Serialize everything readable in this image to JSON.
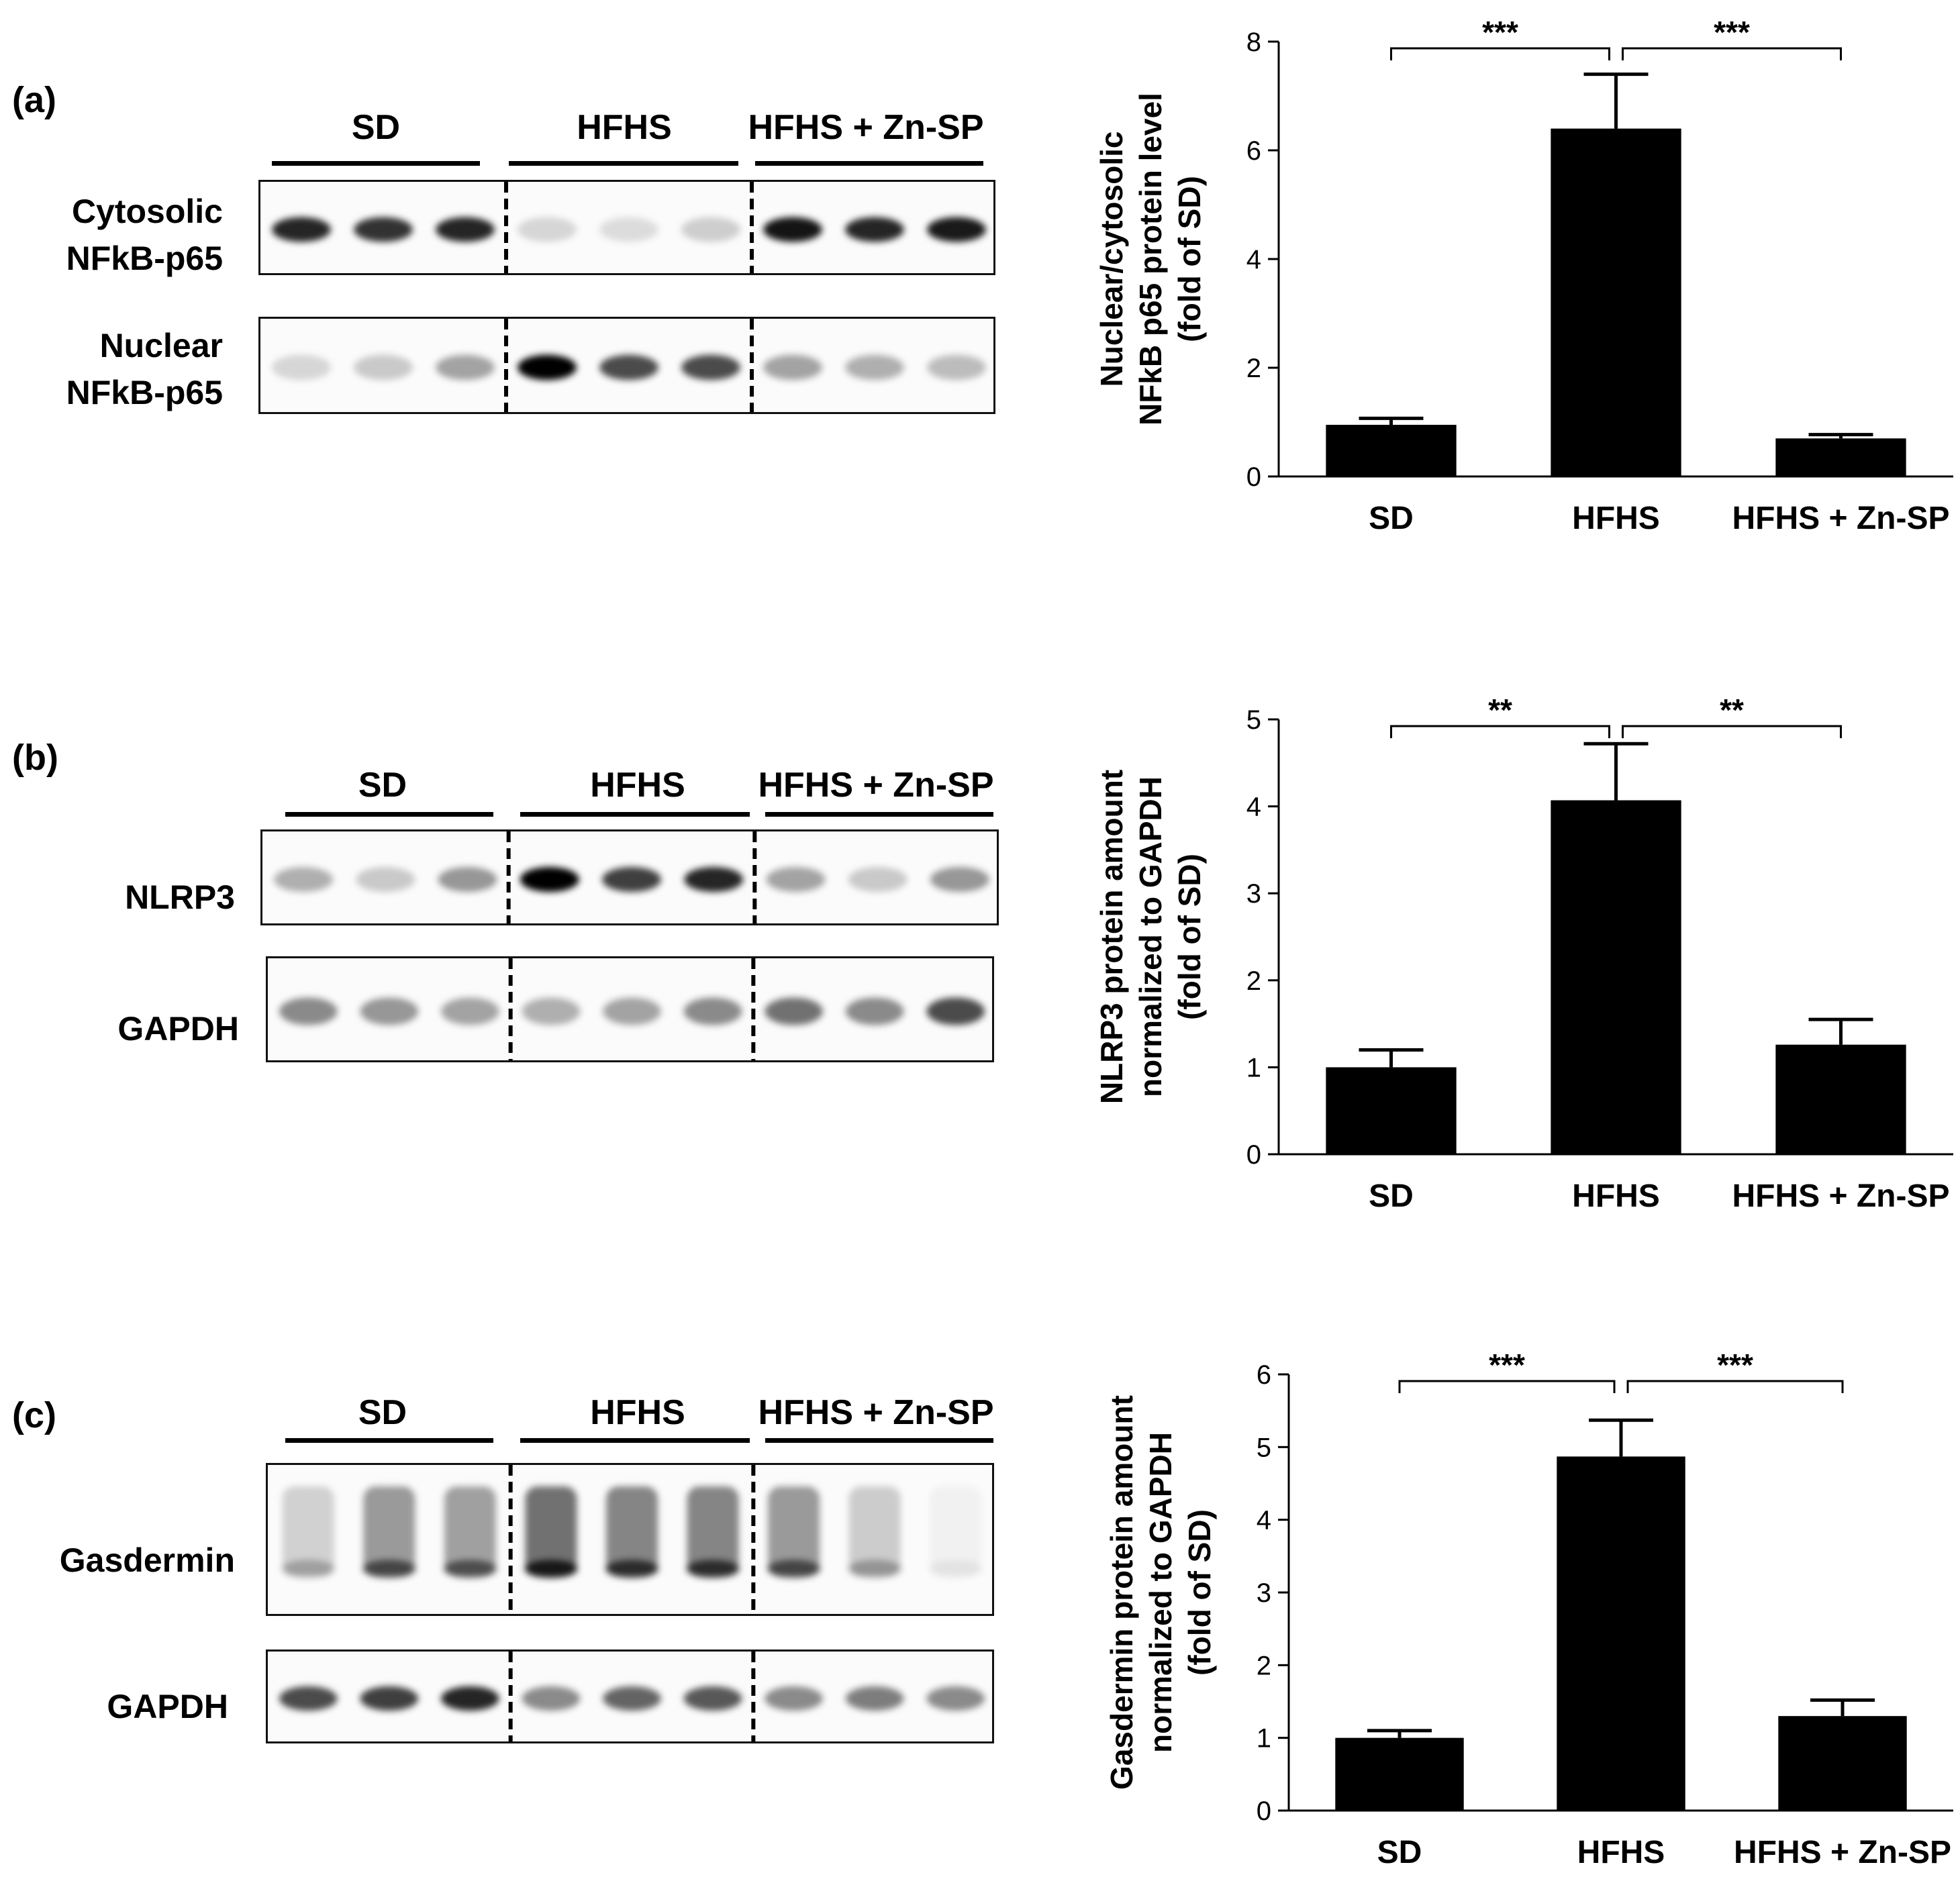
{
  "panels": [
    {
      "letter": "(a)",
      "groups": [
        "SD",
        "HFHS",
        "HFHS + Zn-SP"
      ],
      "blots": [
        {
          "label_lines": [
            "Cytosolic",
            "NFkB-p65"
          ],
          "intensities": [
            0.85,
            0.8,
            0.85,
            0.15,
            0.12,
            0.18,
            0.92,
            0.85,
            0.9
          ]
        },
        {
          "label_lines": [
            "Nuclear",
            "NFkB-p65"
          ],
          "intensities": [
            0.15,
            0.2,
            0.35,
            1.0,
            0.7,
            0.7,
            0.35,
            0.3,
            0.25
          ]
        }
      ],
      "chart_data": {
        "type": "bar",
        "categories": [
          "SD",
          "HFHS",
          "HFHS + Zn-SP"
        ],
        "values": [
          0.95,
          6.4,
          0.7
        ],
        "errors": [
          0.12,
          1.0,
          0.07
        ],
        "ylabel_lines": [
          "Nuclear/cytosolic",
          "NFkB p65 protein level",
          "(fold of SD)"
        ],
        "ylim": [
          0,
          8
        ],
        "yticks": [
          0,
          2,
          4,
          6,
          8
        ],
        "significance": [
          {
            "from": "SD",
            "to": "HFHS",
            "label": "***"
          },
          {
            "from": "HFHS",
            "to": "HFHS + Zn-SP",
            "label": "***"
          }
        ]
      }
    },
    {
      "letter": "(b)",
      "groups": [
        "SD",
        "HFHS",
        "HFHS + Zn-SP"
      ],
      "blots": [
        {
          "label_lines": [
            "NLRP3"
          ],
          "intensities": [
            0.3,
            0.2,
            0.4,
            1.0,
            0.75,
            0.85,
            0.35,
            0.2,
            0.4
          ]
        },
        {
          "label_lines": [
            "GAPDH"
          ],
          "intensities": [
            0.45,
            0.4,
            0.35,
            0.3,
            0.35,
            0.45,
            0.55,
            0.45,
            0.7
          ]
        }
      ],
      "chart_data": {
        "type": "bar",
        "categories": [
          "SD",
          "HFHS",
          "HFHS + Zn-SP"
        ],
        "values": [
          1.0,
          4.07,
          1.26
        ],
        "errors": [
          0.2,
          0.65,
          0.29
        ],
        "ylabel_lines": [
          "NLRP3 protein amount",
          "normalized to GAPDH",
          "(fold of SD)"
        ],
        "ylim": [
          0,
          5
        ],
        "yticks": [
          0,
          1,
          2,
          3,
          4,
          5
        ],
        "significance": [
          {
            "from": "SD",
            "to": "HFHS",
            "label": "**"
          },
          {
            "from": "HFHS",
            "to": "HFHS + Zn-SP",
            "label": "**"
          }
        ]
      }
    },
    {
      "letter": "(c)",
      "groups": [
        "SD",
        "HFHS",
        "HFHS + Zn-SP"
      ],
      "blots": [
        {
          "label_lines": [
            "Gasdermin"
          ],
          "intensities": [
            0.3,
            0.7,
            0.65,
            1.0,
            0.85,
            0.85,
            0.7,
            0.35,
            0.08
          ]
        },
        {
          "label_lines": [
            "GAPDH"
          ],
          "intensities": [
            0.7,
            0.75,
            0.85,
            0.45,
            0.6,
            0.65,
            0.45,
            0.5,
            0.45
          ]
        }
      ],
      "chart_data": {
        "type": "bar",
        "categories": [
          "SD",
          "HFHS",
          "HFHS + Zn-SP"
        ],
        "values": [
          1.0,
          4.87,
          1.3
        ],
        "errors": [
          0.1,
          0.5,
          0.22
        ],
        "ylabel_lines": [
          "Gasdermin protein amount",
          "normalized to GAPDH",
          "(fold of SD)"
        ],
        "ylim": [
          0,
          6
        ],
        "yticks": [
          0,
          1,
          2,
          3,
          4,
          5,
          6
        ],
        "significance": [
          {
            "from": "SD",
            "to": "HFHS",
            "label": "***"
          },
          {
            "from": "HFHS",
            "to": "HFHS + Zn-SP",
            "label": "***"
          }
        ]
      }
    }
  ]
}
